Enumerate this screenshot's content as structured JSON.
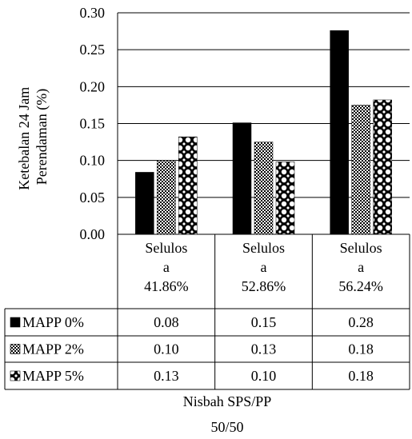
{
  "chart_data": {
    "type": "bar",
    "ylabel": [
      "Ketebalan 24 Jam",
      "Perendaman (%)"
    ],
    "ylim": [
      0,
      0.3
    ],
    "yticks": [
      0.0,
      0.05,
      0.1,
      0.15,
      0.2,
      0.25,
      0.3
    ],
    "ytick_labels": [
      "0.00",
      "0.05",
      "0.10",
      "0.15",
      "0.20",
      "0.25",
      "0.30"
    ],
    "grid": true,
    "categories": [
      [
        "Selulos",
        "a",
        "41.86%"
      ],
      [
        "Selulos",
        "a",
        "52.86%"
      ],
      [
        "Selulos",
        "a",
        "56.24%"
      ]
    ],
    "series": [
      {
        "name": "MAPP 0%",
        "pattern": "solid",
        "values": [
          0.084,
          0.151,
          0.276
        ],
        "table_values": [
          "0.08",
          "0.15",
          "0.28"
        ]
      },
      {
        "name": "MAPP 2%",
        "pattern": "checker",
        "values": [
          0.1,
          0.125,
          0.175
        ],
        "table_values": [
          "0.10",
          "0.13",
          "0.18"
        ]
      },
      {
        "name": "MAPP 5%",
        "pattern": "dots",
        "values": [
          0.132,
          0.098,
          0.182
        ],
        "table_values": [
          "0.13",
          "0.10",
          "0.18"
        ]
      }
    ],
    "xlabel": [
      "Nisbah SPS/PP",
      "50/50"
    ],
    "colors": {
      "bar": "#000000",
      "background": "#ffffff",
      "grid": "#000000"
    }
  }
}
